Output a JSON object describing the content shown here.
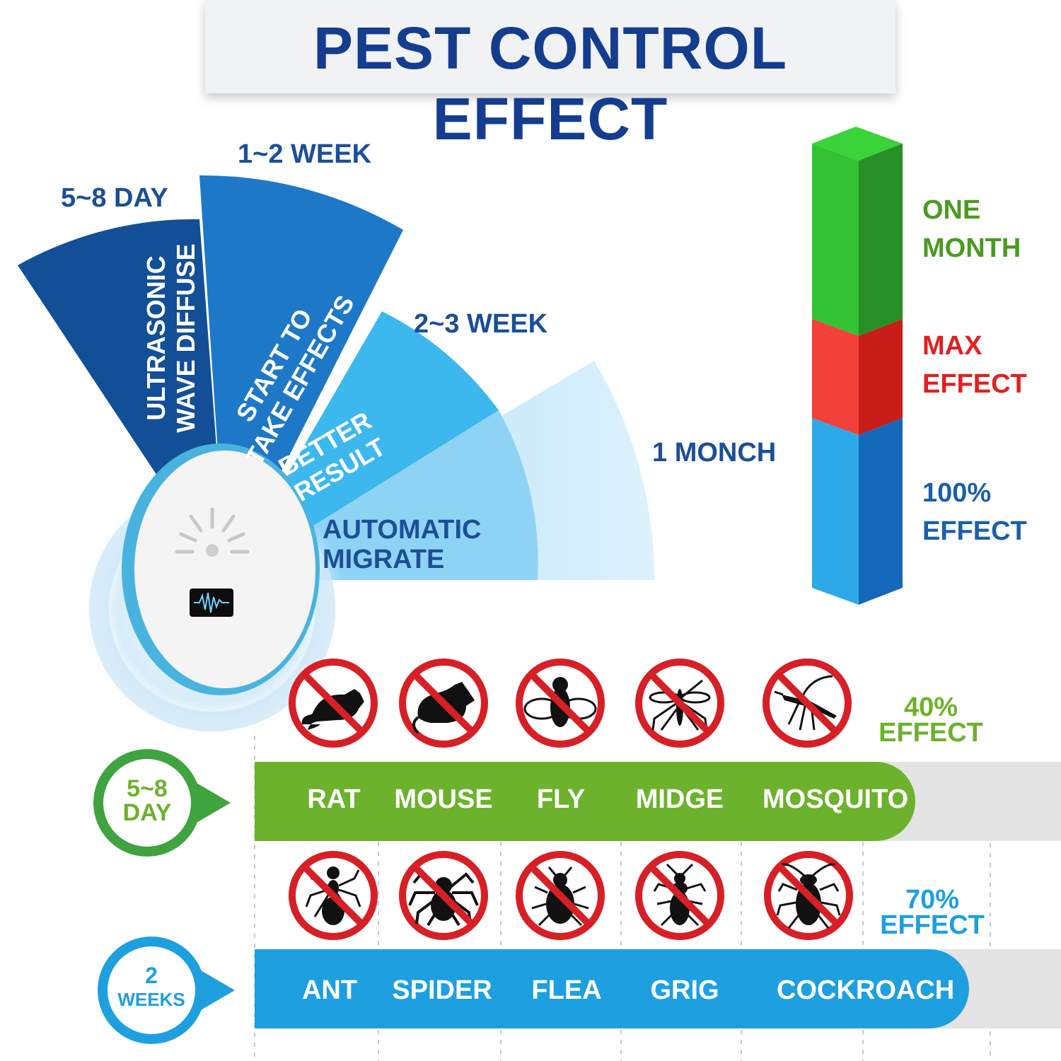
{
  "title": "PEST CONTROL EFFECT",
  "fan": {
    "stage_labels": [
      "5~8 DAY",
      "1~2 WEEK",
      "2~3 WEEK",
      "1 MONCH"
    ],
    "sector_texts": [
      [
        "ULTRASONIC",
        "WAVE DIFFUSE"
      ],
      [
        "START TO",
        "TAKE EFFECTS"
      ],
      [
        "BETTER",
        "RESULT"
      ],
      [
        "AUTOMATIC",
        "MIGRATE"
      ]
    ]
  },
  "legend": [
    {
      "line1": "ONE",
      "line2": "MONTH",
      "color": "#4b9a21"
    },
    {
      "line1": "MAX",
      "line2": "EFFECT",
      "color": "#e2201f"
    },
    {
      "line1": "100%",
      "line2": "EFFECT",
      "color": "#1b5fa8"
    }
  ],
  "rows": [
    {
      "badge": [
        "5~8",
        "DAY"
      ],
      "effect": [
        "40%",
        "EFFECT"
      ],
      "effect_fraction": 0.4,
      "color": "#6cb22c",
      "pests": [
        "RAT",
        "MOUSE",
        "FLY",
        "MIDGE",
        "MOSQUITO"
      ],
      "icons": [
        "rat-icon",
        "mouse-icon",
        "fly-icon",
        "midge-icon",
        "mosquito-icon"
      ]
    },
    {
      "badge": [
        "2",
        "WEEKS"
      ],
      "effect": [
        "70%",
        "EFFECT"
      ],
      "effect_fraction": 0.7,
      "color": "#1e9fe0",
      "pests": [
        "ANT",
        "SPIDER",
        "FLEA",
        "GRIG",
        "COCKROACH"
      ],
      "icons": [
        "ant-icon",
        "spider-icon",
        "flea-icon",
        "cricket-icon",
        "cockroach-icon"
      ]
    }
  ]
}
